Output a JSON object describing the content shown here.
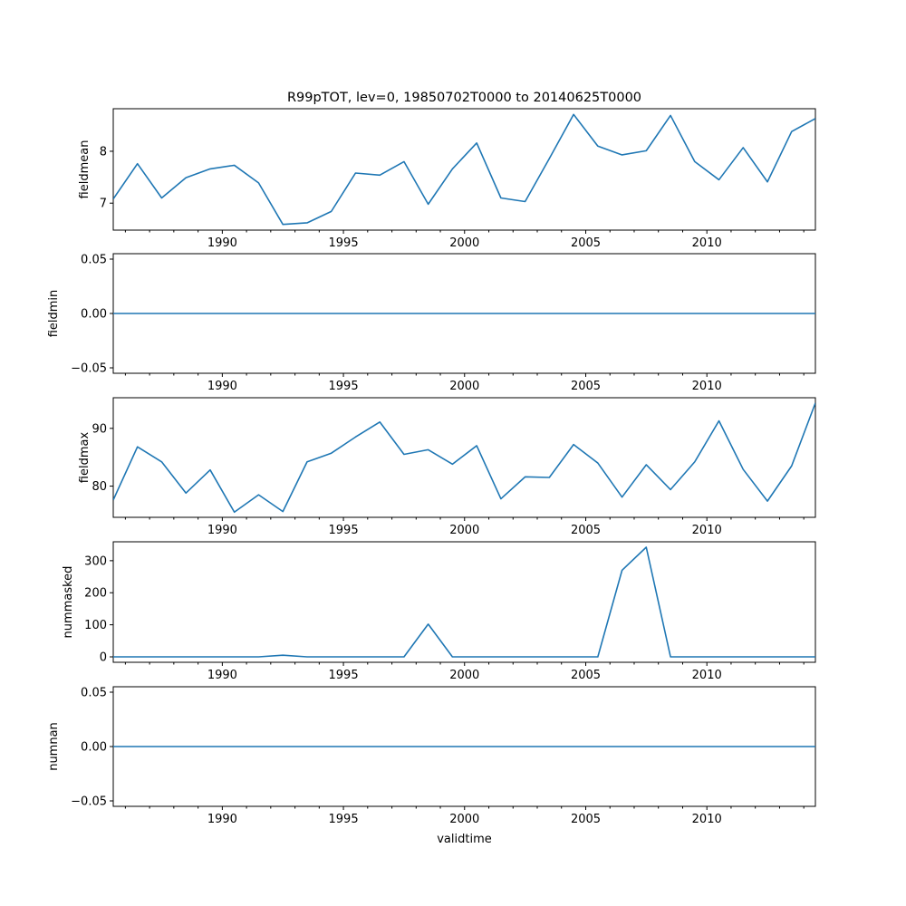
{
  "figure": {
    "title": "R99pTOT, lev=0, 19850702T0000 to 20140625T0000",
    "xlabel": "validtime"
  },
  "colors": {
    "series": "#1f77b4",
    "axes": "#000000",
    "background": "#ffffff"
  },
  "chart_data": [
    {
      "type": "line",
      "ylabel": "fieldmean",
      "x": [
        "1985-07-02",
        "1986-07-02",
        "1987-07-02",
        "1988-07-02",
        "1989-07-02",
        "1990-07-02",
        "1991-07-02",
        "1992-07-02",
        "1993-07-02",
        "1994-07-02",
        "1995-07-02",
        "1996-07-02",
        "1997-07-02",
        "1998-07-02",
        "1999-07-02",
        "2000-07-02",
        "2001-07-02",
        "2002-07-02",
        "2003-07-02",
        "2004-07-02",
        "2005-07-02",
        "2006-07-02",
        "2007-07-02",
        "2008-07-02",
        "2009-07-02",
        "2010-07-02",
        "2011-07-02",
        "2012-07-02",
        "2013-07-02",
        "2014-06-25"
      ],
      "y": [
        7.08,
        7.76,
        7.1,
        7.49,
        7.66,
        7.73,
        7.39,
        6.59,
        6.62,
        6.84,
        7.58,
        7.54,
        7.8,
        6.98,
        7.66,
        8.16,
        7.1,
        7.03,
        7.86,
        8.71,
        8.1,
        7.93,
        8.01,
        8.69,
        7.8,
        7.45,
        8.07,
        7.41,
        8.38,
        8.63
      ],
      "ylim": [
        6.48,
        8.82
      ],
      "yticks": [
        7,
        8
      ],
      "ytick_labels": [
        "7",
        "8"
      ]
    },
    {
      "type": "line",
      "ylabel": "fieldmin",
      "x": [
        "1985-07-02",
        "1986-07-02",
        "1987-07-02",
        "1988-07-02",
        "1989-07-02",
        "1990-07-02",
        "1991-07-02",
        "1992-07-02",
        "1993-07-02",
        "1994-07-02",
        "1995-07-02",
        "1996-07-02",
        "1997-07-02",
        "1998-07-02",
        "1999-07-02",
        "2000-07-02",
        "2001-07-02",
        "2002-07-02",
        "2003-07-02",
        "2004-07-02",
        "2005-07-02",
        "2006-07-02",
        "2007-07-02",
        "2008-07-02",
        "2009-07-02",
        "2010-07-02",
        "2011-07-02",
        "2012-07-02",
        "2013-07-02",
        "2014-06-25"
      ],
      "y": [
        0,
        0,
        0,
        0,
        0,
        0,
        0,
        0,
        0,
        0,
        0,
        0,
        0,
        0,
        0,
        0,
        0,
        0,
        0,
        0,
        0,
        0,
        0,
        0,
        0,
        0,
        0,
        0,
        0,
        0
      ],
      "ylim": [
        -0.055,
        0.055
      ],
      "yticks": [
        -0.05,
        0.0,
        0.05
      ],
      "ytick_labels": [
        "−0.05",
        "0.00",
        "0.05"
      ]
    },
    {
      "type": "line",
      "ylabel": "fieldmax",
      "x": [
        "1985-07-02",
        "1986-07-02",
        "1987-07-02",
        "1988-07-02",
        "1989-07-02",
        "1990-07-02",
        "1991-07-02",
        "1992-07-02",
        "1993-07-02",
        "1994-07-02",
        "1995-07-02",
        "1996-07-02",
        "1997-07-02",
        "1998-07-02",
        "1999-07-02",
        "2000-07-02",
        "2001-07-02",
        "2002-07-02",
        "2003-07-02",
        "2004-07-02",
        "2005-07-02",
        "2006-07-02",
        "2007-07-02",
        "2008-07-02",
        "2009-07-02",
        "2010-07-02",
        "2011-07-02",
        "2012-07-02",
        "2013-07-02",
        "2014-06-25"
      ],
      "y": [
        77.6,
        86.8,
        84.2,
        78.8,
        82.8,
        75.5,
        78.5,
        75.6,
        84.2,
        85.7,
        88.5,
        91.1,
        85.5,
        86.3,
        83.8,
        87.0,
        77.8,
        81.6,
        81.5,
        87.2,
        84.0,
        78.1,
        83.7,
        79.4,
        84.2,
        91.3,
        82.9,
        77.4,
        83.5,
        94.4
      ],
      "ylim": [
        74.6,
        95.3
      ],
      "yticks": [
        80,
        90
      ],
      "ytick_labels": [
        "80",
        "90"
      ]
    },
    {
      "type": "line",
      "ylabel": "nummasked",
      "x": [
        "1985-07-02",
        "1986-07-02",
        "1987-07-02",
        "1988-07-02",
        "1989-07-02",
        "1990-07-02",
        "1991-07-02",
        "1992-07-02",
        "1993-07-02",
        "1994-07-02",
        "1995-07-02",
        "1996-07-02",
        "1997-07-02",
        "1998-07-02",
        "1999-07-02",
        "2000-07-02",
        "2001-07-02",
        "2002-07-02",
        "2003-07-02",
        "2004-07-02",
        "2005-07-02",
        "2006-07-02",
        "2007-07-02",
        "2008-07-02",
        "2009-07-02",
        "2010-07-02",
        "2011-07-02",
        "2012-07-02",
        "2013-07-02",
        "2014-06-25"
      ],
      "y": [
        0,
        0,
        0,
        0,
        0,
        0,
        0,
        5,
        0,
        0,
        0,
        0,
        0,
        102,
        0,
        0,
        0,
        0,
        0,
        0,
        0,
        270,
        342,
        0,
        0,
        0,
        0,
        0,
        0,
        0
      ],
      "ylim": [
        -17,
        359
      ],
      "yticks": [
        0,
        100,
        200,
        300
      ],
      "ytick_labels": [
        "0",
        "100",
        "200",
        "300"
      ]
    },
    {
      "type": "line",
      "ylabel": "numnan",
      "x": [
        "1985-07-02",
        "1986-07-02",
        "1987-07-02",
        "1988-07-02",
        "1989-07-02",
        "1990-07-02",
        "1991-07-02",
        "1992-07-02",
        "1993-07-02",
        "1994-07-02",
        "1995-07-02",
        "1996-07-02",
        "1997-07-02",
        "1998-07-02",
        "1999-07-02",
        "2000-07-02",
        "2001-07-02",
        "2002-07-02",
        "2003-07-02",
        "2004-07-02",
        "2005-07-02",
        "2006-07-02",
        "2007-07-02",
        "2008-07-02",
        "2009-07-02",
        "2010-07-02",
        "2011-07-02",
        "2012-07-02",
        "2013-07-02",
        "2014-06-25"
      ],
      "y": [
        0,
        0,
        0,
        0,
        0,
        0,
        0,
        0,
        0,
        0,
        0,
        0,
        0,
        0,
        0,
        0,
        0,
        0,
        0,
        0,
        0,
        0,
        0,
        0,
        0,
        0,
        0,
        0,
        0,
        0
      ],
      "ylim": [
        -0.055,
        0.055
      ],
      "yticks": [
        -0.05,
        0.0,
        0.05
      ],
      "ytick_labels": [
        "−0.05",
        "0.00",
        "0.05"
      ]
    }
  ],
  "x_axis": {
    "xlim": [
      "1985-07-02",
      "2014-06-25"
    ],
    "major_ticks": [
      "1990",
      "1995",
      "2000",
      "2005",
      "2010"
    ],
    "minor_ticks": "yearly"
  }
}
